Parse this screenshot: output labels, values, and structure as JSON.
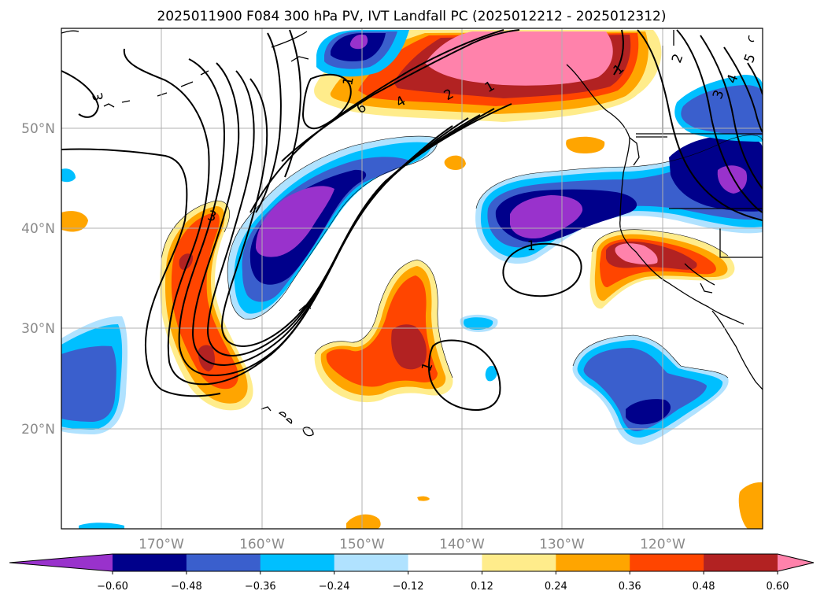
{
  "title": "2025011900 F084 300 hPa PV, IVT Landfall PC (2025012212 - 2025012312)",
  "map": {
    "lon_ticks": [
      "170°W",
      "160°W",
      "150°W",
      "140°W",
      "130°W",
      "120°W"
    ],
    "lat_ticks": [
      "50°N",
      "40°N",
      "30°N",
      "20°N"
    ],
    "gridlines": true
  },
  "colorbar": {
    "extend": "both",
    "tick_labels": [
      "−0.60",
      "−0.48",
      "−0.36",
      "−0.24",
      "−0.12",
      "0.12",
      "0.24",
      "0.36",
      "0.48",
      "0.60"
    ],
    "colors": [
      "#9932cc",
      "#00008b",
      "#3a5fcd",
      "#00bfff",
      "#b0e2ff",
      "#ffffff",
      "#ffec8b",
      "#ffa500",
      "#ff4500",
      "#b22222",
      "#ff82ab"
    ]
  },
  "pv_contour_labels": [
    "3",
    "6",
    "4",
    "2",
    "1",
    "3",
    "1",
    "1",
    "1",
    "2",
    "3",
    "4",
    "5",
    "1"
  ]
}
